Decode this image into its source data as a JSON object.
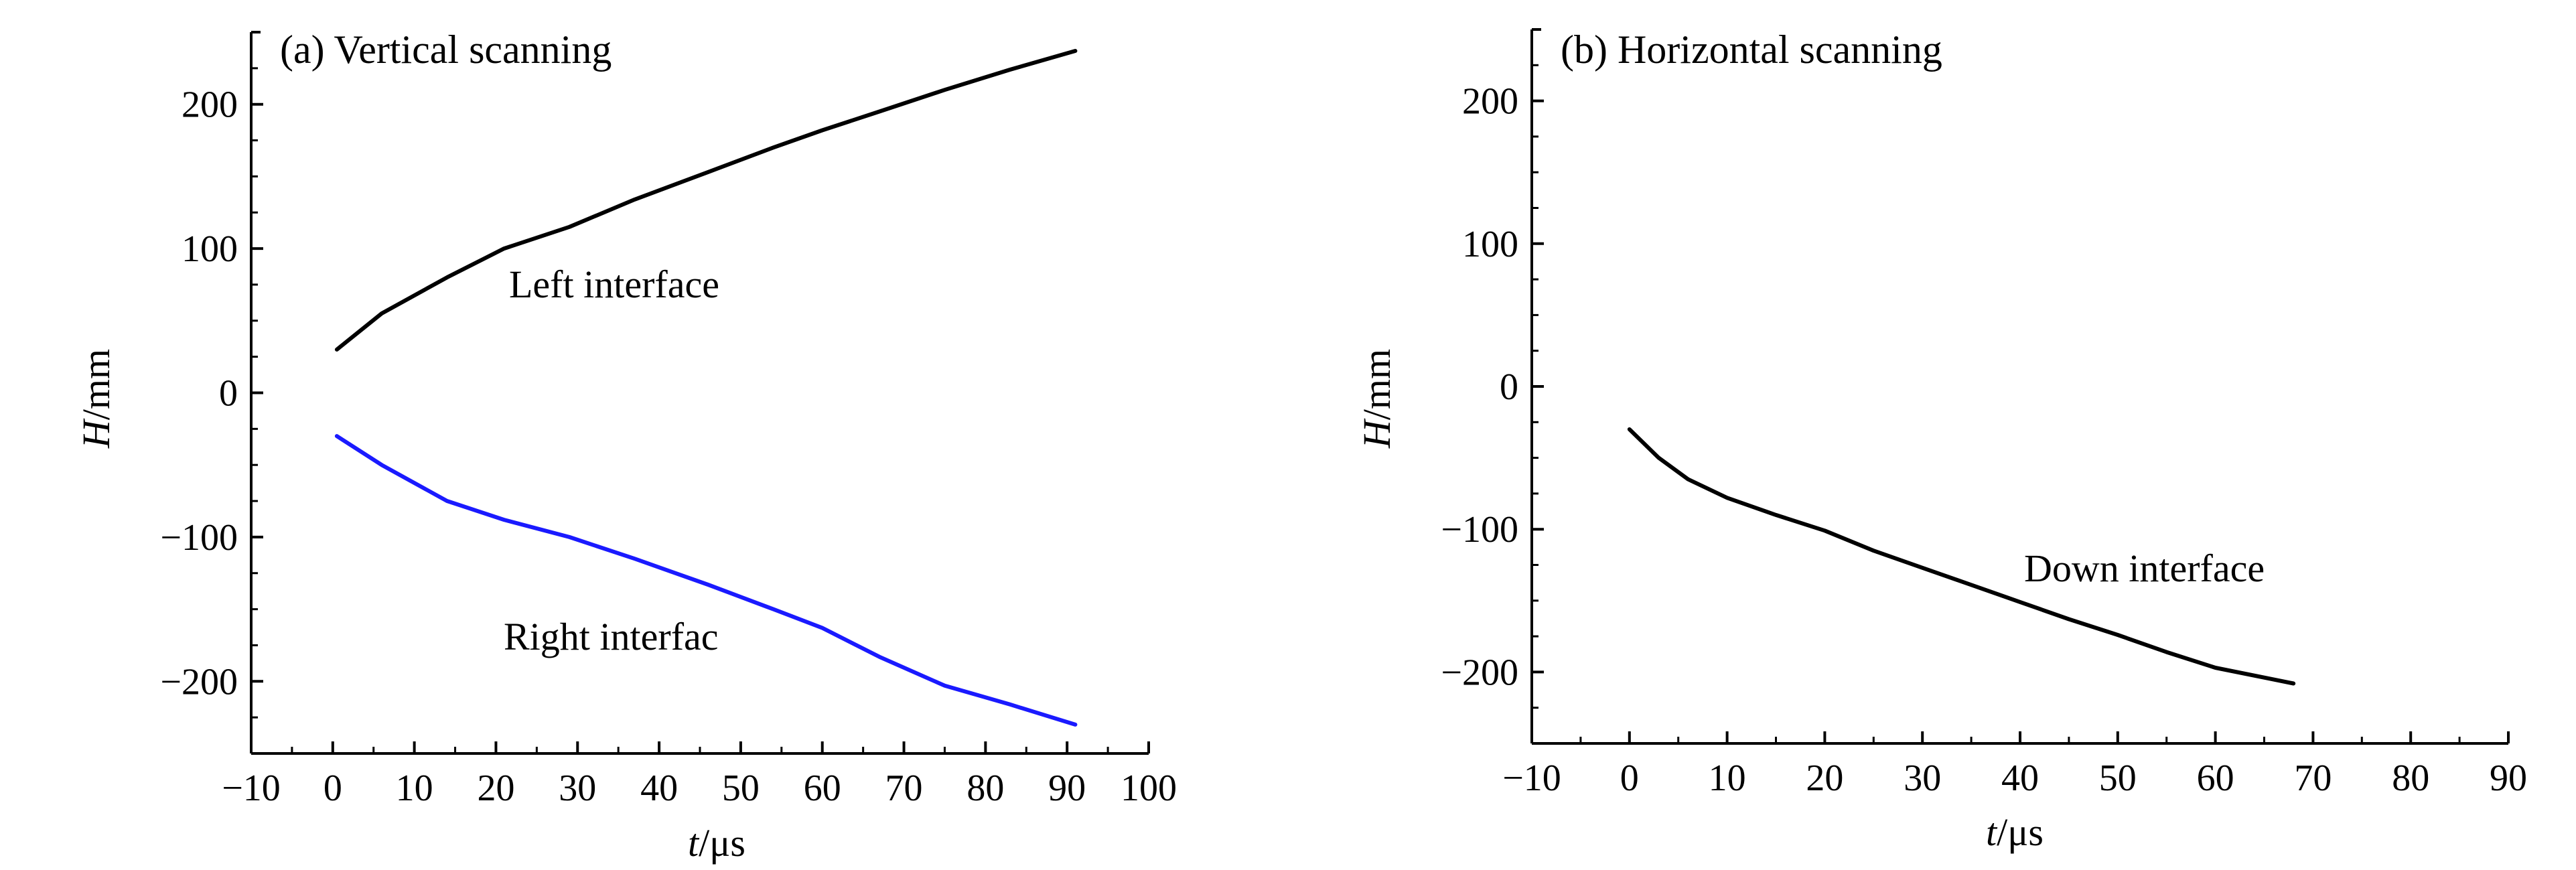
{
  "chart_data": [
    {
      "type": "line",
      "title": "(a) Vertical scanning",
      "xlabel": {
        "var": "t",
        "unit": "/μs"
      },
      "ylabel": {
        "var": "H",
        "unit": "/mm"
      },
      "xlim": [
        -10,
        100
      ],
      "ylim": [
        -250,
        250
      ],
      "xticks": [
        -10,
        0,
        10,
        20,
        30,
        40,
        50,
        60,
        70,
        80,
        90,
        100
      ],
      "xtick_labels": [
        "−10",
        "0",
        "10",
        "20",
        "30",
        "40",
        "50",
        "60",
        "70",
        "80",
        "90",
        "100"
      ],
      "yticks": [
        -200,
        -100,
        0,
        100,
        200
      ],
      "ytick_labels": [
        "−200",
        "−100",
        "0",
        "100",
        "200"
      ],
      "grid": false,
      "series": [
        {
          "name": "Left interface",
          "color": "#000000",
          "x": [
            0.5,
            6,
            14,
            21,
            29,
            37,
            46,
            54,
            60,
            67,
            75,
            83,
            91
          ],
          "y": [
            30,
            55,
            80,
            100,
            115,
            134,
            153,
            170,
            182,
            195,
            210,
            224,
            237
          ]
        },
        {
          "name": "Right interfac",
          "color": "#1a1aff",
          "x": [
            0.5,
            6,
            14,
            21,
            29,
            37,
            46,
            54,
            60,
            67,
            75,
            83,
            91
          ],
          "y": [
            -30,
            -50,
            -75,
            -88,
            -100,
            -115,
            -133,
            -150,
            -163,
            -183,
            -203,
            -216,
            -230
          ]
        }
      ]
    },
    {
      "type": "line",
      "title": "(b) Horizontal scanning",
      "xlabel": {
        "var": "t",
        "unit": "/μs"
      },
      "ylabel": {
        "var": "H",
        "unit": "/mm"
      },
      "xlim": [
        -10,
        90
      ],
      "ylim": [
        -250,
        250
      ],
      "xticks": [
        -10,
        0,
        10,
        20,
        30,
        40,
        50,
        60,
        70,
        80,
        90
      ],
      "xtick_labels": [
        "−10",
        "0",
        "10",
        "20",
        "30",
        "40",
        "50",
        "60",
        "70",
        "80",
        "90"
      ],
      "yticks": [
        -200,
        -100,
        0,
        100,
        200
      ],
      "ytick_labels": [
        "−200",
        "−100",
        "0",
        "100",
        "200"
      ],
      "grid": false,
      "series": [
        {
          "name": "Down interface",
          "color": "#000000",
          "x": [
            0,
            3,
            6,
            10,
            15,
            20,
            25,
            30,
            35,
            40,
            45,
            50,
            55,
            60,
            68
          ],
          "y": [
            -30,
            -50,
            -65,
            -78,
            -90,
            -101,
            -115,
            -127,
            -139,
            -151,
            -163,
            -174,
            -186,
            -197,
            -208
          ]
        }
      ]
    }
  ]
}
